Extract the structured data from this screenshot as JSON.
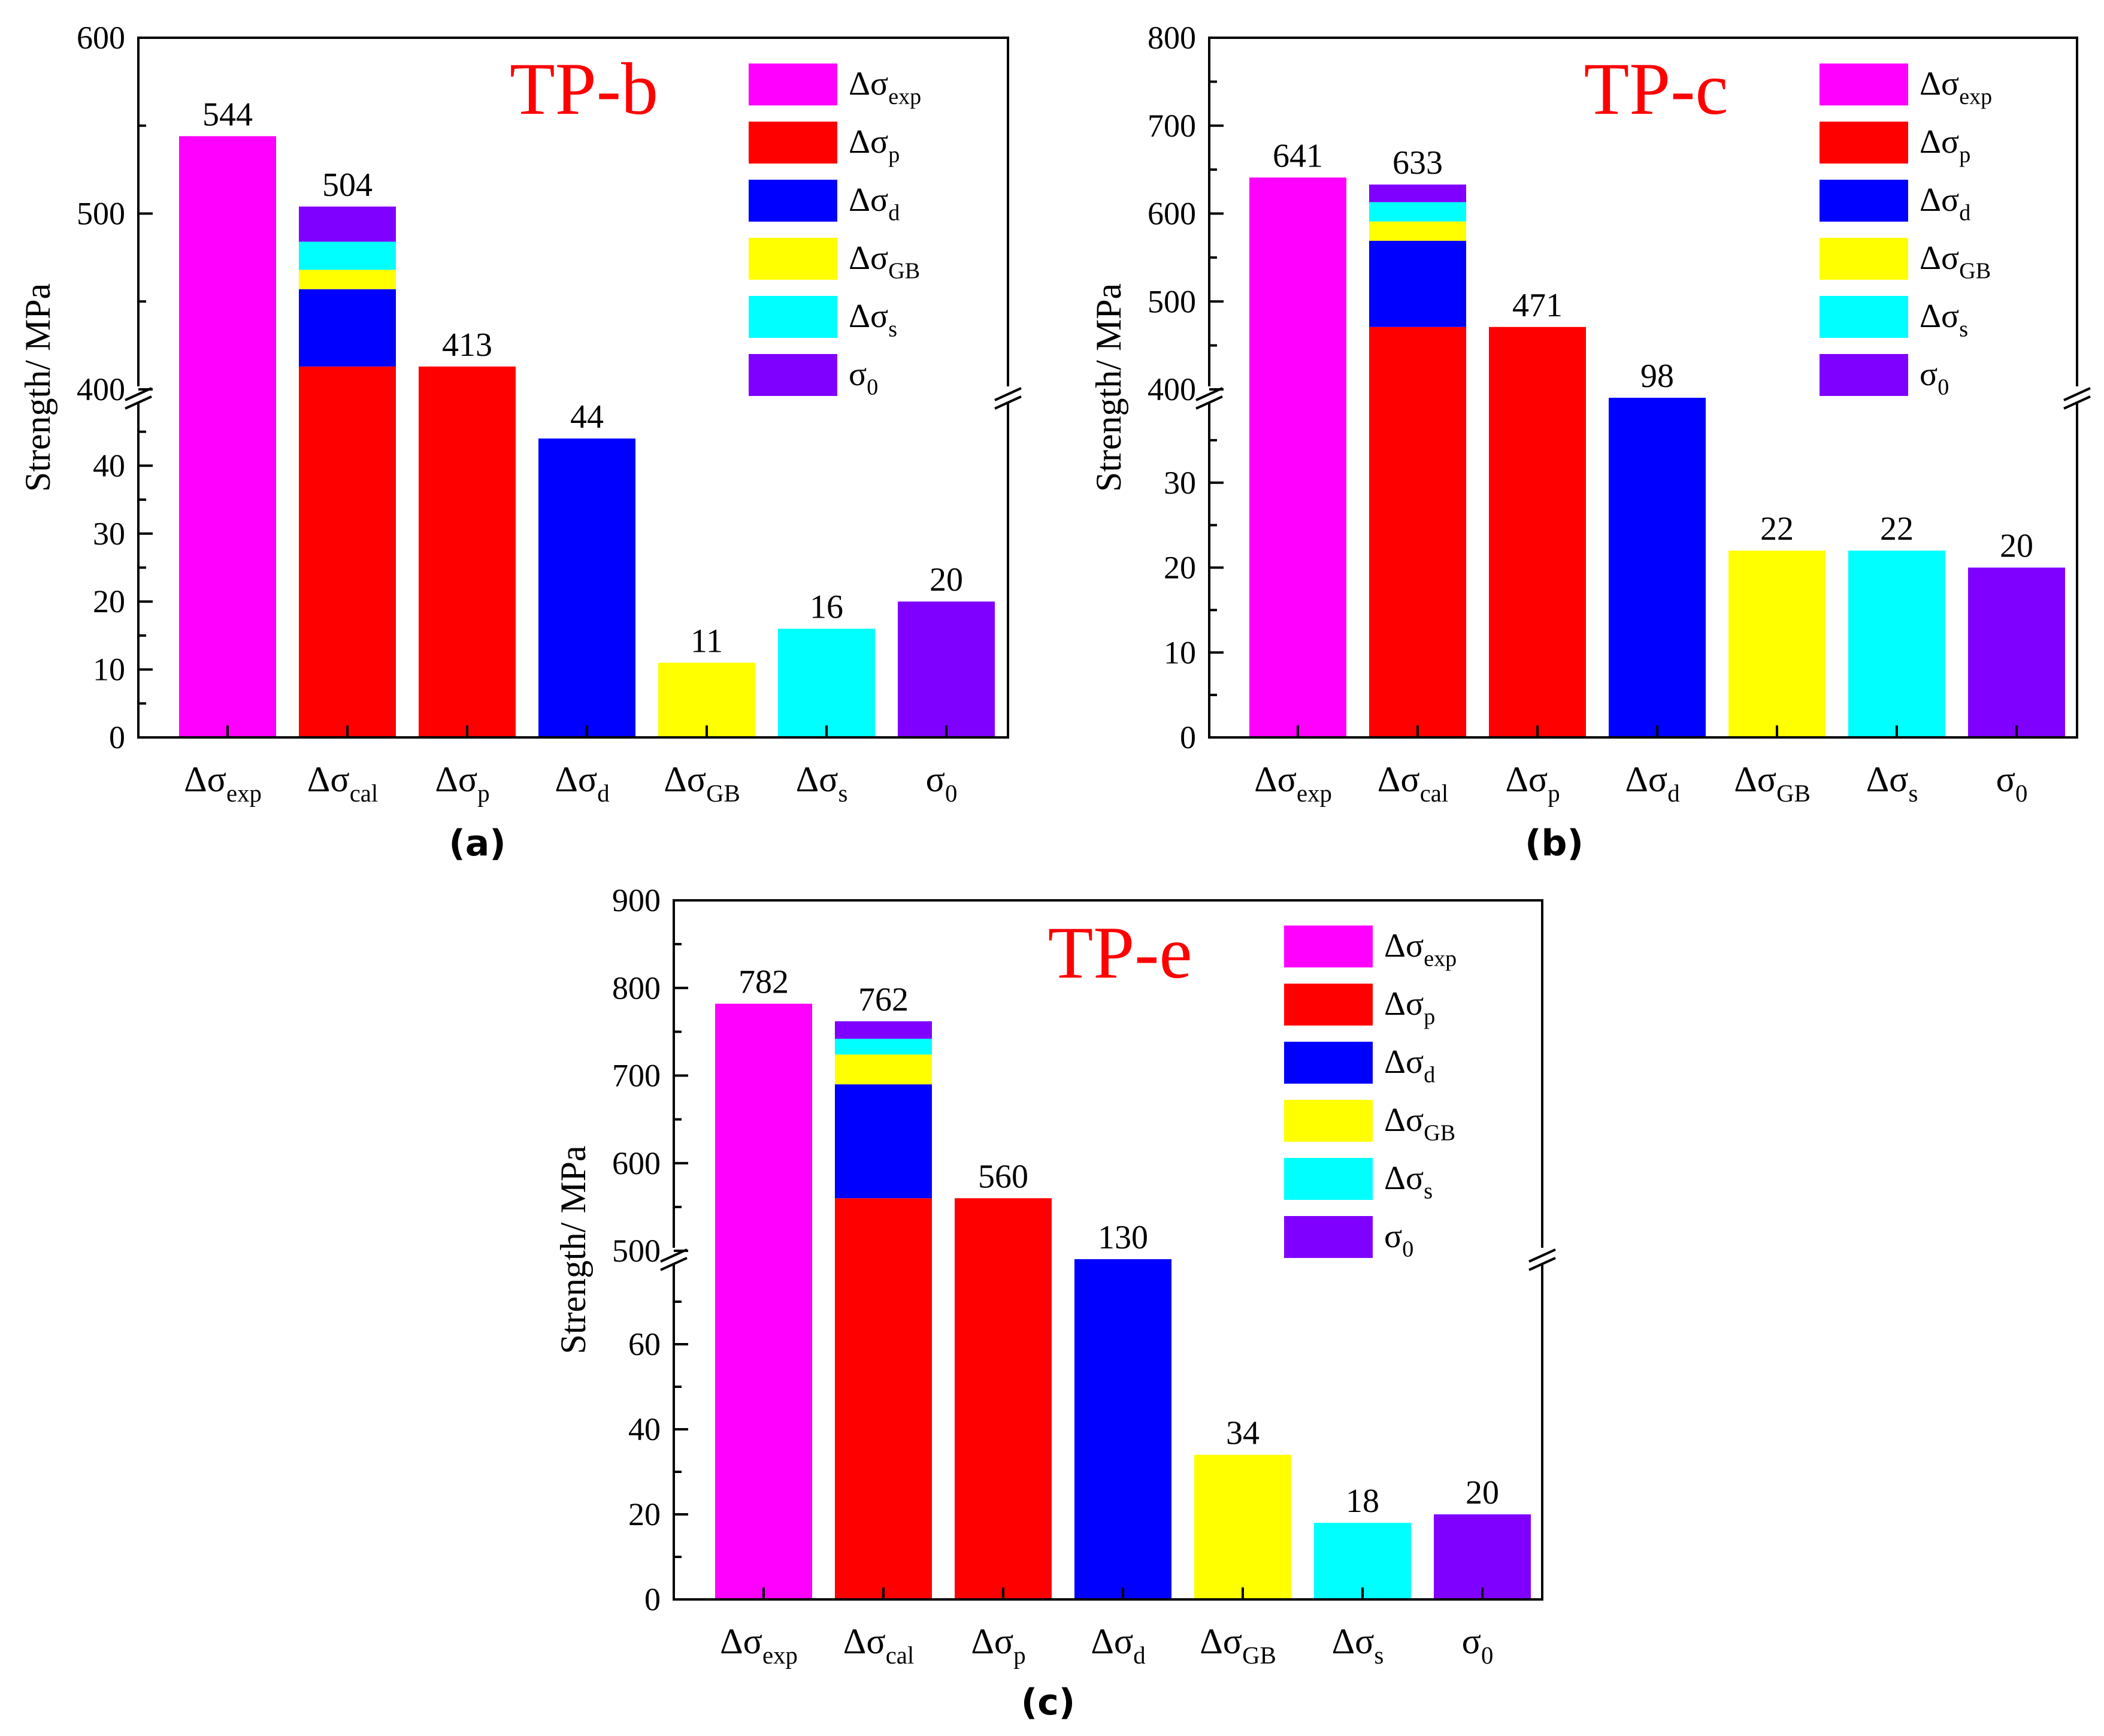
{
  "colors": {
    "exp": "#ff00ff",
    "p": "#ff0000",
    "d": "#0000ff",
    "GB": "#ffff00",
    "s": "#00ffff",
    "sigma0": "#8000ff",
    "title": "#ff0000"
  },
  "category_labels": [
    {
      "base": "Δσ",
      "sub": "exp"
    },
    {
      "base": "Δσ",
      "sub": "cal"
    },
    {
      "base": "Δσ",
      "sub": "p"
    },
    {
      "base": "Δσ",
      "sub": "d"
    },
    {
      "base": "Δσ",
      "sub": "GB"
    },
    {
      "base": "Δσ",
      "sub": "s"
    },
    {
      "base": "σ",
      "sub": "0"
    }
  ],
  "legend": [
    {
      "base": "Δσ",
      "sub": "exp",
      "color_key": "exp"
    },
    {
      "base": "Δσ",
      "sub": "p",
      "color_key": "p"
    },
    {
      "base": "Δσ",
      "sub": "d",
      "color_key": "d"
    },
    {
      "base": "Δσ",
      "sub": "GB",
      "color_key": "GB"
    },
    {
      "base": "Δσ",
      "sub": "s",
      "color_key": "s"
    },
    {
      "base": "σ",
      "sub": "0",
      "color_key": "sigma0"
    }
  ],
  "chart_data": [
    {
      "type": "bar",
      "panel_label": "(a)",
      "title": "TP-b",
      "ylabel": "Strength/ MPa",
      "axis_break": true,
      "upper_range": [
        400,
        600
      ],
      "upper_ticks": [
        "400",
        "500",
        "600"
      ],
      "lower_range": [
        0,
        50
      ],
      "lower_ticks": [
        "0",
        "10",
        "20",
        "30",
        "40"
      ],
      "values": [
        544,
        504,
        413,
        44,
        11,
        16,
        20
      ],
      "value_labels": [
        "544",
        "504",
        "413",
        "44",
        "11",
        "16",
        "20"
      ],
      "stack": [
        {
          "key": "p",
          "value": 413
        },
        {
          "key": "d",
          "value": 44
        },
        {
          "key": "GB",
          "value": 11
        },
        {
          "key": "s",
          "value": 16
        },
        {
          "key": "sigma0",
          "value": 20
        }
      ]
    },
    {
      "type": "bar",
      "panel_label": "(b)",
      "title": "TP-c",
      "ylabel": "Strength/ MPa",
      "axis_break": true,
      "upper_range": [
        400,
        800
      ],
      "upper_ticks": [
        "400",
        "500",
        "600",
        "700",
        "800"
      ],
      "lower_range": [
        0,
        40
      ],
      "lower_ticks": [
        "0",
        "10",
        "20",
        "30"
      ],
      "values": [
        641,
        633,
        471,
        98,
        22,
        22,
        20
      ],
      "value_labels": [
        "641",
        "633",
        "471",
        "98",
        "22",
        "22",
        "20"
      ],
      "stack": [
        {
          "key": "p",
          "value": 471
        },
        {
          "key": "d",
          "value": 98
        },
        {
          "key": "GB",
          "value": 22
        },
        {
          "key": "s",
          "value": 22
        },
        {
          "key": "sigma0",
          "value": 20
        }
      ]
    },
    {
      "type": "bar",
      "panel_label": "(c)",
      "title": "TP-e",
      "ylabel": "Strength/ MPa",
      "axis_break": true,
      "upper_range": [
        500,
        900
      ],
      "upper_ticks": [
        "500",
        "600",
        "700",
        "800",
        "900"
      ],
      "lower_range": [
        0,
        80
      ],
      "lower_ticks": [
        "0",
        "20",
        "40",
        "60"
      ],
      "values": [
        782,
        762,
        560,
        130,
        34,
        18,
        20
      ],
      "value_labels": [
        "782",
        "762",
        "560",
        "130",
        "34",
        "18",
        "20"
      ],
      "stack": [
        {
          "key": "p",
          "value": 560
        },
        {
          "key": "d",
          "value": 130
        },
        {
          "key": "GB",
          "value": 34
        },
        {
          "key": "s",
          "value": 18
        },
        {
          "key": "sigma0",
          "value": 20
        }
      ]
    }
  ]
}
